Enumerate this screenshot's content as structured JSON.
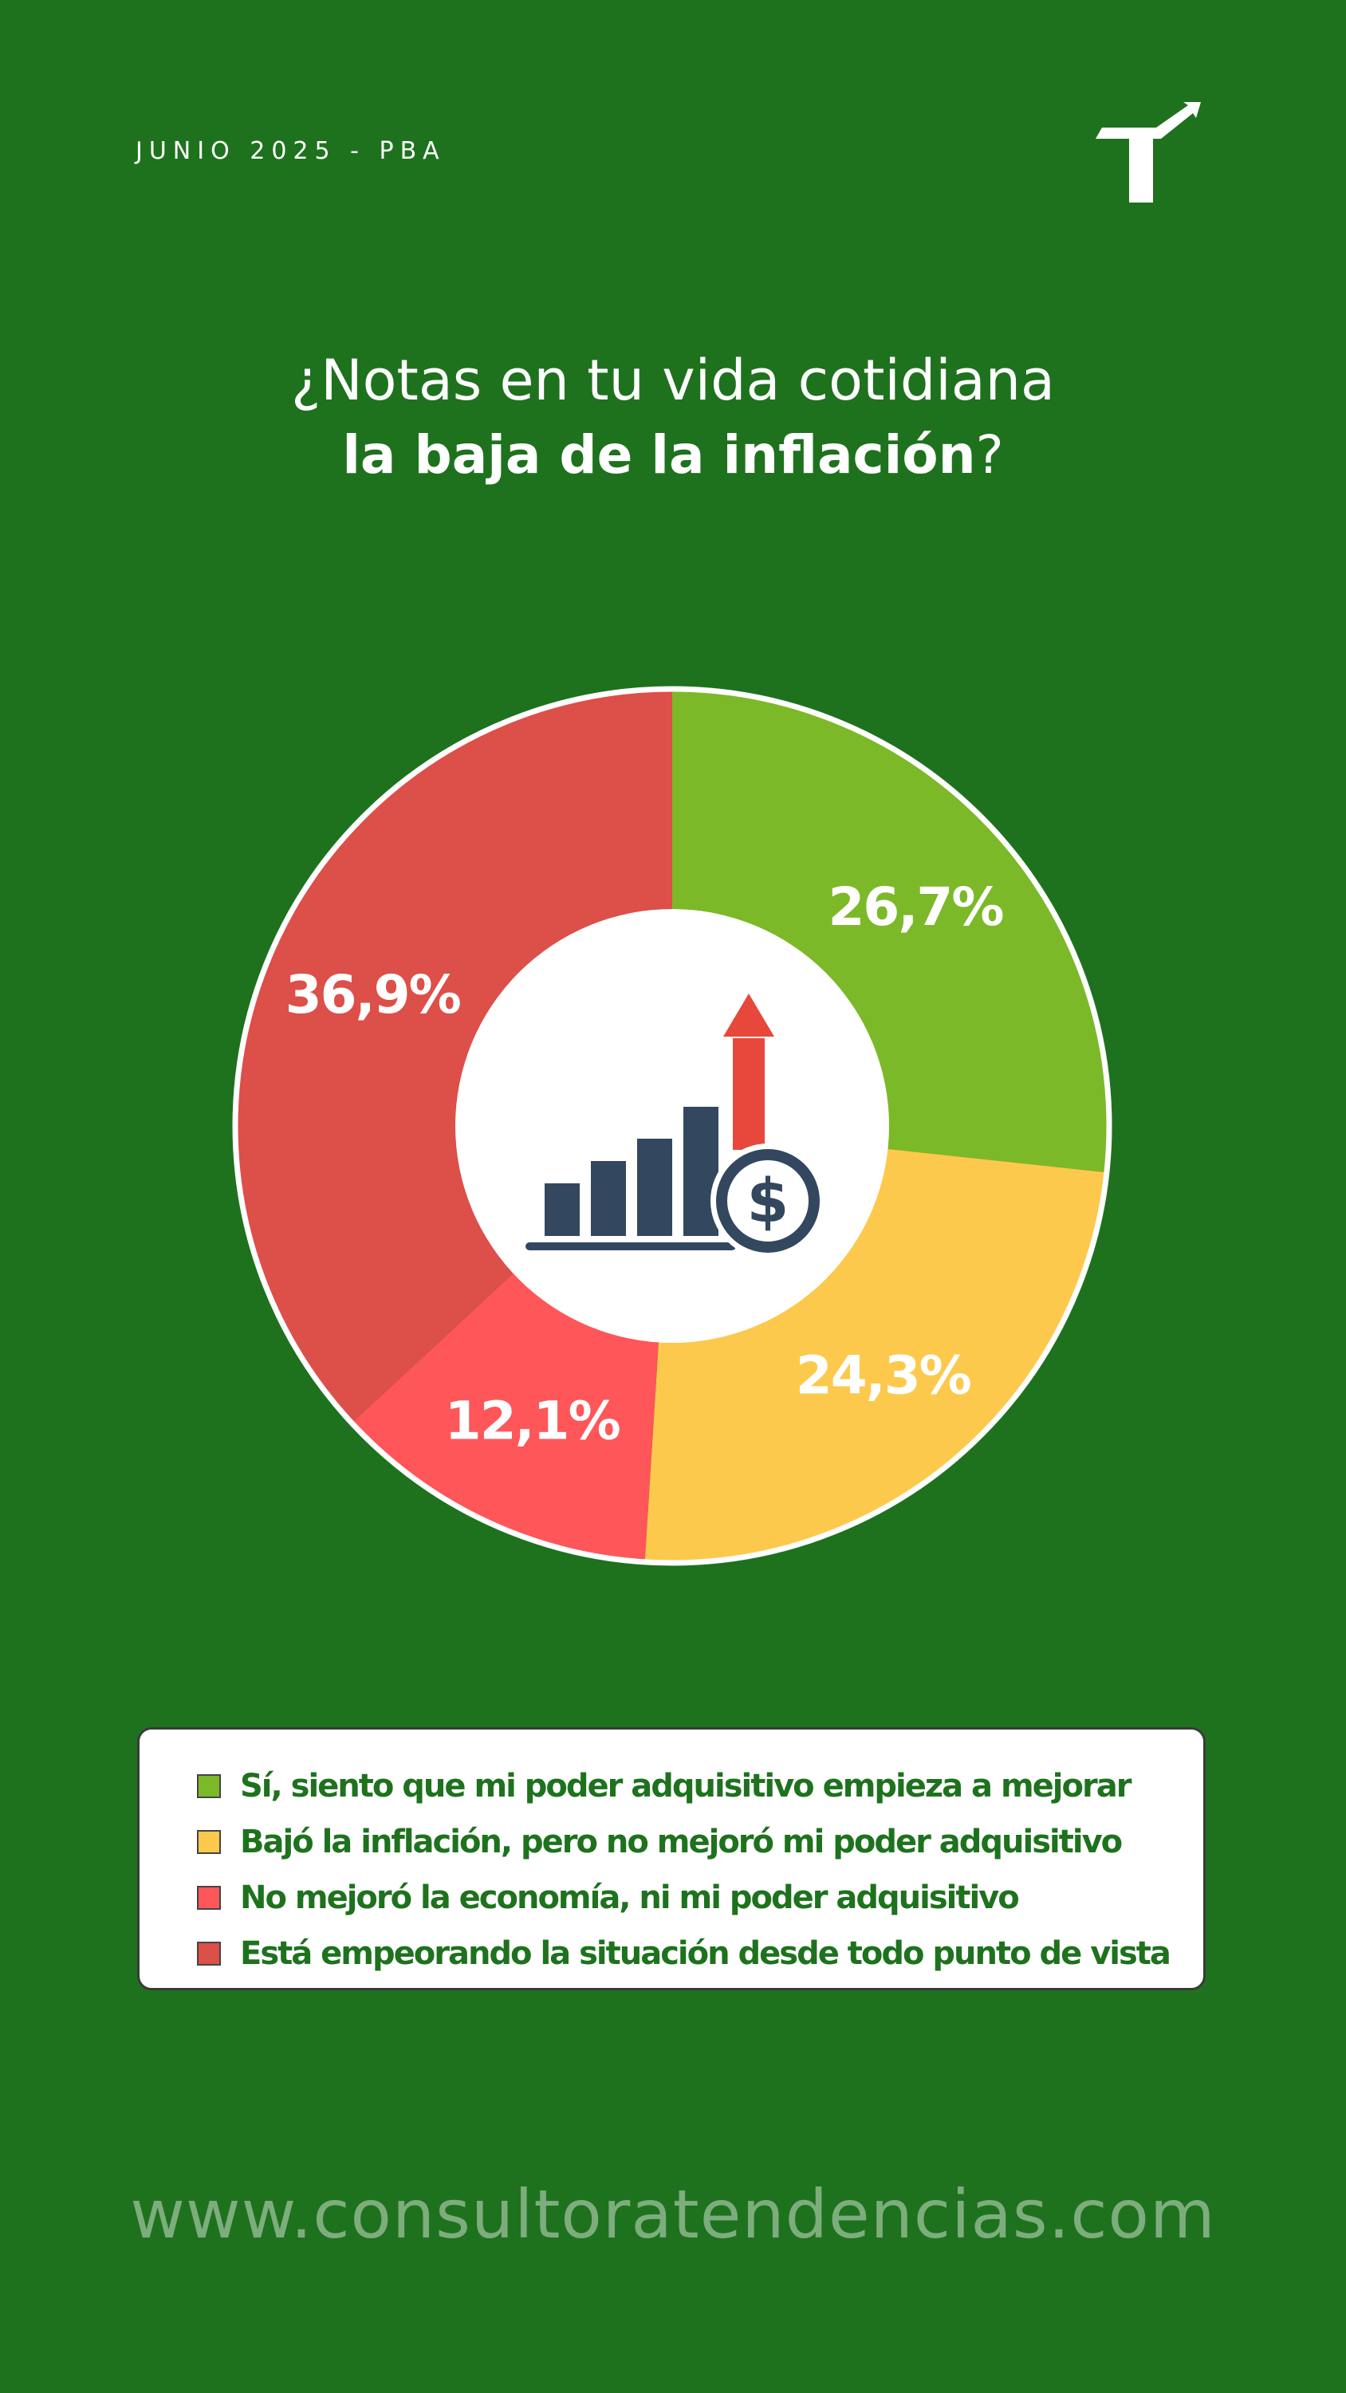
{
  "header": {
    "date_label": "JUNIO 2025 - PBA"
  },
  "title": {
    "line1": "¿Notas en tu vida cotidiana",
    "line2_bold": "la baja de la inflación",
    "line2_end": "?"
  },
  "chart_data": {
    "type": "pie",
    "style": "donut",
    "categories": [
      "Sí, siento que mi poder adquisitivo empieza a mejorar",
      "Bajó la inflación, pero no mejoró mi poder adquisitivo",
      "No mejoró la economía, ni mi poder adquisitivo",
      "Está empeorando la situación desde todo punto de vista"
    ],
    "values": [
      26.7,
      24.3,
      12.1,
      36.9
    ],
    "labels": [
      "26,7%",
      "24,3%",
      "12,1%",
      "36,9%"
    ],
    "colors": [
      "#7cb928",
      "#fdc94c",
      "#ff5659",
      "#dd4f49"
    ],
    "legend_position": "bottom"
  },
  "center_icon": "growth-chart-dollar-icon",
  "logo_icon": "brand-arrow-logo",
  "footer": {
    "website": "www.consultoratendencias.com"
  },
  "colors": {
    "background": "#1e721e",
    "legend_text": "#1e721e",
    "icon_dark": "#33475f",
    "icon_arrow": "#e8473c"
  }
}
